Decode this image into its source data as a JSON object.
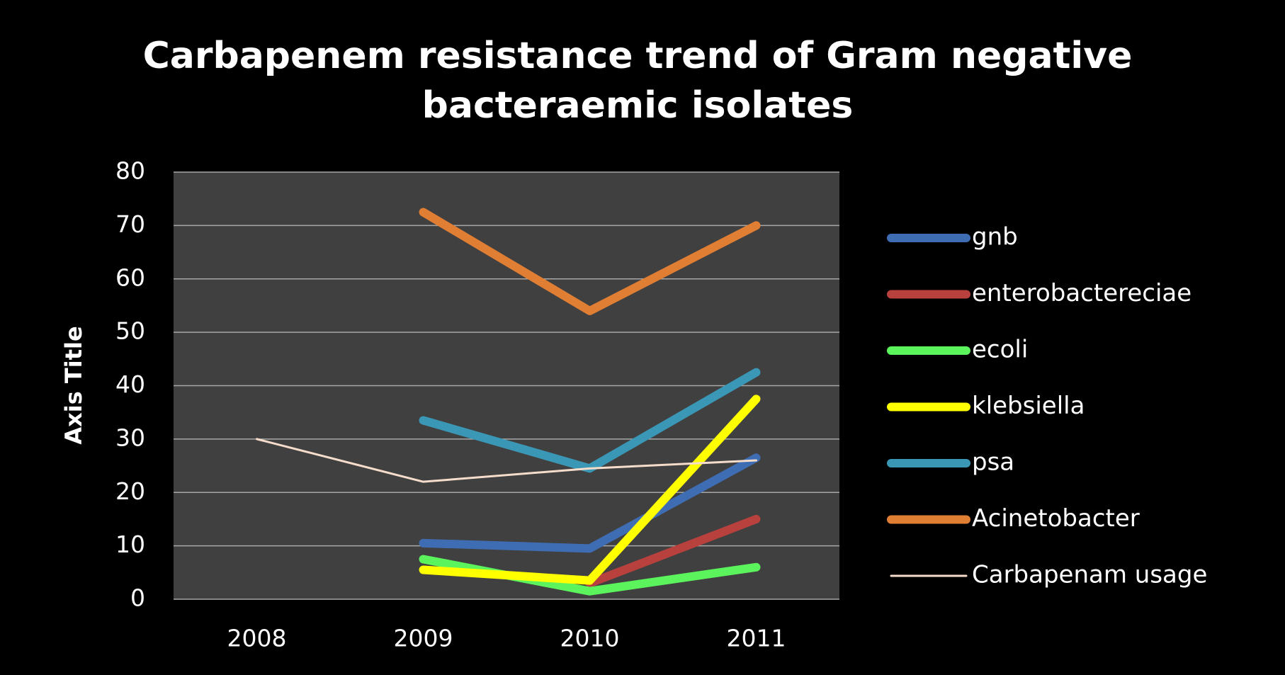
{
  "chart_data": {
    "type": "line",
    "title": "Carbapenem resistance trend of Gram negative bacteraemic isolates",
    "y_label": "Axis Title",
    "categories": [
      "2008",
      "2009",
      "2010",
      "2011"
    ],
    "series": [
      {
        "name": "gnb",
        "color": "#3f6db3",
        "values": [
          null,
          10.5,
          9.5,
          26.5
        ]
      },
      {
        "name": "enterobactereciae",
        "color": "#b9413d",
        "values": [
          null,
          null,
          3,
          15
        ]
      },
      {
        "name": "ecoli",
        "color": "#5cf45c",
        "values": [
          null,
          7.5,
          1.5,
          6
        ]
      },
      {
        "name": "klebsiella",
        "color": "#ffff00",
        "values": [
          null,
          5.5,
          3.5,
          37.5
        ]
      },
      {
        "name": "psa",
        "color": "#3a98b6",
        "values": [
          null,
          33.5,
          24.5,
          42.5
        ]
      },
      {
        "name": "Acinetobacter",
        "color": "#e07e33",
        "values": [
          null,
          72.5,
          54,
          70
        ]
      },
      {
        "name": "Carbapenam usage",
        "color": "#f6dccb",
        "thin": true,
        "values": [
          30,
          22,
          24.5,
          26
        ]
      }
    ],
    "ylim": [
      0,
      80
    ],
    "yticks": [
      0,
      10,
      20,
      30,
      40,
      50,
      60,
      70,
      80
    ],
    "grid": true,
    "legend": "right"
  }
}
